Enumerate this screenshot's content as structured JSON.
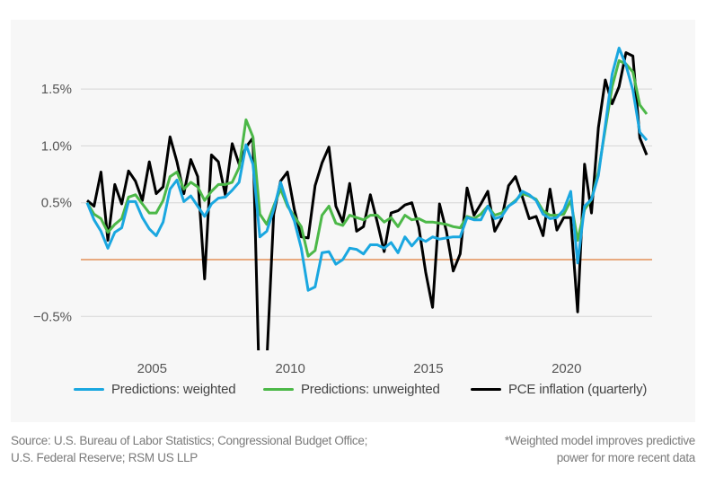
{
  "chart_data": {
    "type": "line",
    "title": "",
    "xlabel": "",
    "ylabel": "",
    "x_start": "2003 Q1",
    "x_frequency": "quarterly",
    "x_ticks": [
      2005,
      2010,
      2015,
      2020
    ],
    "y_ticks": [
      {
        "v": 1.5,
        "label": "1.5%"
      },
      {
        "v": 1.0,
        "label": "1.0%"
      },
      {
        "v": 0.5,
        "label": "0.5%"
      },
      {
        "v": 0,
        "label": ""
      },
      {
        "v": -0.5,
        "label": "−0.5%"
      }
    ],
    "ylim": [
      -0.8,
      2.1
    ],
    "grid": true,
    "zero_line_color": "#e07b39",
    "legend_position": "bottom",
    "series": [
      {
        "name": "Predictions: weighted",
        "color": "#1aa7e0",
        "values": [
          0.5,
          0.35,
          0.25,
          0.1,
          0.24,
          0.28,
          0.51,
          0.51,
          0.37,
          0.27,
          0.21,
          0.33,
          0.62,
          0.7,
          0.51,
          0.56,
          0.47,
          0.38,
          0.49,
          0.54,
          0.55,
          0.61,
          0.68,
          1.01,
          0.84,
          0.2,
          0.25,
          0.44,
          0.68,
          0.49,
          0.34,
          0.1,
          -0.27,
          -0.24,
          0.06,
          0.07,
          -0.04,
          0.0,
          0.1,
          0.09,
          0.05,
          0.13,
          0.13,
          0.1,
          0.15,
          0.06,
          0.2,
          0.12,
          0.19,
          0.16,
          0.2,
          0.18,
          0.19,
          0.2,
          0.2,
          0.37,
          0.35,
          0.35,
          0.47,
          0.36,
          0.38,
          0.47,
          0.51,
          0.6,
          0.57,
          0.52,
          0.4,
          0.36,
          0.37,
          0.44,
          0.6,
          -0.03,
          0.47,
          0.53,
          0.74,
          1.18,
          1.63,
          1.86,
          1.71,
          1.49,
          1.12,
          1.05
        ]
      },
      {
        "name": "Predictions: unweighted",
        "color": "#4cb848",
        "values": [
          0.5,
          0.4,
          0.36,
          0.24,
          0.31,
          0.36,
          0.55,
          0.57,
          0.49,
          0.41,
          0.41,
          0.52,
          0.73,
          0.77,
          0.62,
          0.68,
          0.64,
          0.52,
          0.6,
          0.66,
          0.66,
          0.68,
          0.81,
          1.23,
          1.08,
          0.4,
          0.31,
          0.47,
          0.62,
          0.47,
          0.38,
          0.29,
          0.03,
          0.08,
          0.39,
          0.47,
          0.32,
          0.3,
          0.39,
          0.37,
          0.35,
          0.39,
          0.39,
          0.33,
          0.37,
          0.29,
          0.39,
          0.35,
          0.36,
          0.33,
          0.33,
          0.32,
          0.31,
          0.29,
          0.28,
          0.38,
          0.36,
          0.4,
          0.47,
          0.39,
          0.41,
          0.47,
          0.52,
          0.58,
          0.56,
          0.53,
          0.43,
          0.39,
          0.39,
          0.4,
          0.52,
          0.17,
          0.44,
          0.53,
          0.77,
          1.15,
          1.52,
          1.75,
          1.72,
          1.65,
          1.36,
          1.28
        ]
      },
      {
        "name": "PCE inflation (quarterly)",
        "color": "#000000",
        "values": [
          0.52,
          0.47,
          0.77,
          0.17,
          0.66,
          0.49,
          0.78,
          0.69,
          0.52,
          0.86,
          0.58,
          0.64,
          1.08,
          0.86,
          0.58,
          0.88,
          0.73,
          -0.17,
          0.92,
          0.86,
          0.57,
          1.02,
          0.84,
          0.99,
          1.07,
          -1.3,
          -0.9,
          0.4,
          0.69,
          0.77,
          0.44,
          0.2,
          0.19,
          0.65,
          0.85,
          0.99,
          0.47,
          0.33,
          0.67,
          0.25,
          0.29,
          0.57,
          0.33,
          0.07,
          0.41,
          0.43,
          0.48,
          0.5,
          0.29,
          -0.11,
          -0.42,
          0.49,
          0.25,
          -0.1,
          0.05,
          0.63,
          0.39,
          0.49,
          0.6,
          0.25,
          0.36,
          0.65,
          0.73,
          0.55,
          0.36,
          0.38,
          0.21,
          0.62,
          0.26,
          0.37,
          0.37,
          -0.46,
          0.84,
          0.41,
          1.16,
          1.58,
          1.37,
          1.52,
          1.82,
          1.79,
          1.07,
          0.92
        ]
      }
    ]
  },
  "source": {
    "line1": "Source: U.S. Bureau of Labor Statistics; Congressional Budget Office;",
    "line2": "U.S. Federal Reserve; RSM US LLP"
  },
  "footnote": {
    "line1": "*Weighted model improves predictive",
    "line2": "power for more recent data"
  }
}
